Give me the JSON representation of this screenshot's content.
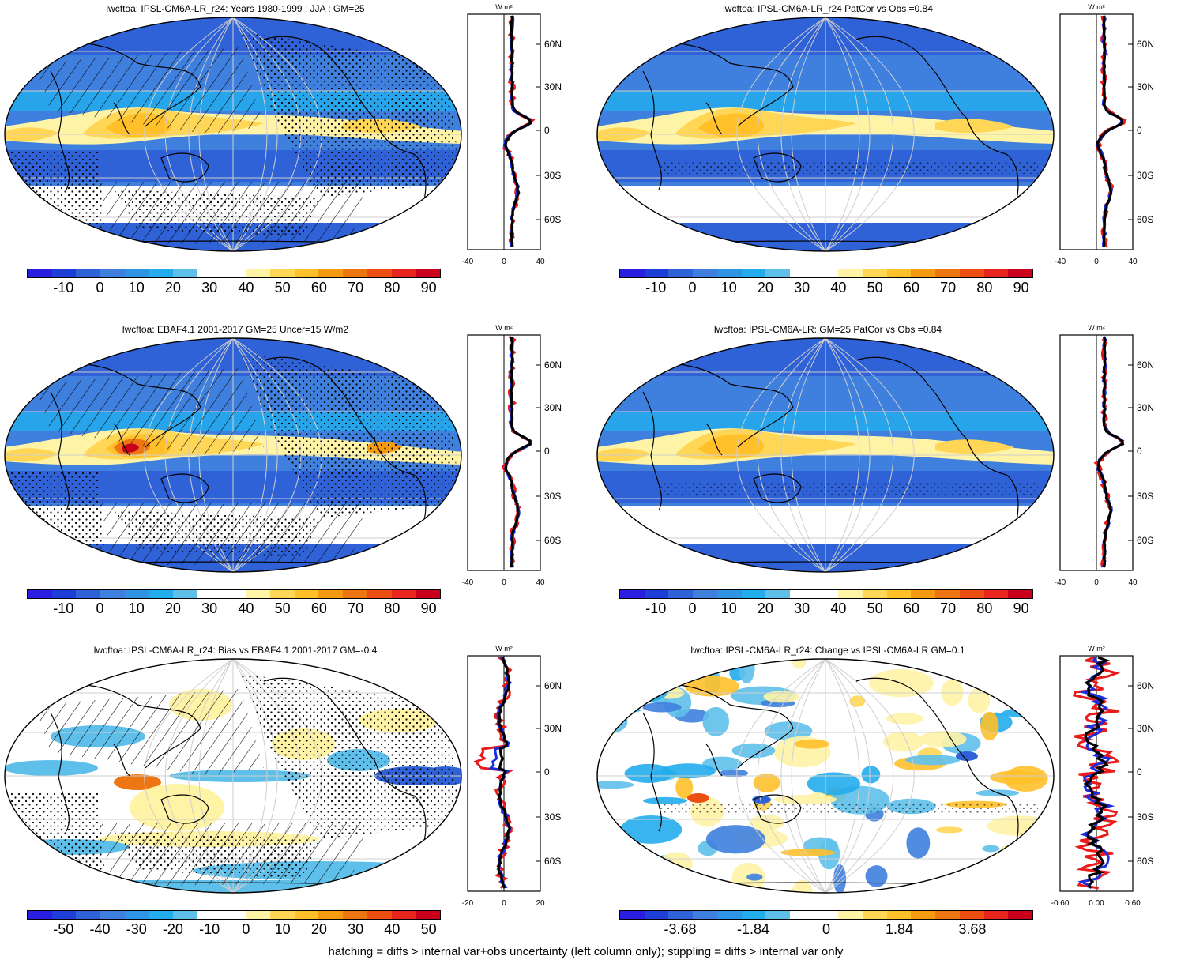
{
  "panels": [
    {
      "title": "lwcftoa: IPSL-CM6A-LR_r24: Years 1980-1999 : JJA : GM=25",
      "cbar_labels": [
        "-10",
        "0",
        "10",
        "20",
        "30",
        "40",
        "50",
        "60",
        "70",
        "80",
        "90"
      ],
      "zonal_ticks_x": [
        "-40",
        "0",
        "40"
      ],
      "lat_labels": [
        "60N",
        "30N",
        "0",
        "30S",
        "60S"
      ],
      "unit": "W m²",
      "kind": "clim",
      "hatch": true,
      "stipple": "dense"
    },
    {
      "title": "lwcftoa: IPSL-CM6A-LR_r24 PatCor vs Obs =0.84",
      "cbar_labels": [
        "-10",
        "0",
        "10",
        "20",
        "30",
        "40",
        "50",
        "60",
        "70",
        "80",
        "90"
      ],
      "zonal_ticks_x": [
        "-40",
        "0",
        "40"
      ],
      "lat_labels": [
        "60N",
        "30N",
        "0",
        "30S",
        "60S"
      ],
      "unit": "W m²",
      "kind": "clim",
      "hatch": false,
      "stipple": "sparse"
    },
    {
      "title": "lwcftoa: EBAF4.1 2001-2017 GM=25 Uncer=15 W/m2",
      "cbar_labels": [
        "-10",
        "0",
        "10",
        "20",
        "30",
        "40",
        "50",
        "60",
        "70",
        "80",
        "90"
      ],
      "zonal_ticks_x": [
        "-40",
        "0",
        "40"
      ],
      "lat_labels": [
        "60N",
        "30N",
        "0",
        "30S",
        "60S"
      ],
      "unit": "W m²",
      "kind": "obs",
      "hatch": true,
      "stipple": "dense"
    },
    {
      "title": "lwcftoa: IPSL-CM6A-LR: GM=25 PatCor vs Obs =0.84",
      "cbar_labels": [
        "-10",
        "0",
        "10",
        "20",
        "30",
        "40",
        "50",
        "60",
        "70",
        "80",
        "90"
      ],
      "zonal_ticks_x": [
        "-40",
        "0",
        "40"
      ],
      "lat_labels": [
        "60N",
        "30N",
        "0",
        "30S",
        "60S"
      ],
      "unit": "W m²",
      "kind": "clim",
      "hatch": false,
      "stipple": "sparse"
    },
    {
      "title": "lwcftoa: IPSL-CM6A-LR_r24: Bias vs EBAF4.1 2001-2017 GM=-0.4",
      "cbar_labels": [
        "-50",
        "-40",
        "-30",
        "-20",
        "-10",
        "0",
        "10",
        "20",
        "30",
        "40",
        "50"
      ],
      "zonal_ticks_x": [
        "-20",
        "0",
        "20"
      ],
      "lat_labels": [
        "60N",
        "30N",
        "0",
        "30S",
        "60S"
      ],
      "unit": "W m²",
      "kind": "bias",
      "hatch": true,
      "stipple": "dense"
    },
    {
      "title": "lwcftoa: IPSL-CM6A-LR_r24: Change vs IPSL-CM6A-LR GM=0.1",
      "cbar_labels": [
        "-3.68",
        "-1.84",
        "0",
        "1.84",
        "3.68"
      ],
      "zonal_ticks_x": [
        "-0.60",
        "0.00",
        "0.60"
      ],
      "lat_labels": [
        "60N",
        "30N",
        "0",
        "30S",
        "60S"
      ],
      "unit": "W m²",
      "kind": "change",
      "hatch": false,
      "stipple": "sparse"
    }
  ],
  "colors": [
    "#2a1ee0",
    "#1f3ed8",
    "#2f62d6",
    "#3f80de",
    "#2e94e3",
    "#22acec",
    "#5ec0ea",
    "#ffffff",
    "#ffffff",
    "#fff3a6",
    "#ffd655",
    "#ffc02a",
    "#f59b12",
    "#ee7612",
    "#ec4e12",
    "#e8261e",
    "#c8001c"
  ],
  "footer": "hatching = diffs > internal var+obs uncertainty (left column only); stippling = diffs > internal var only"
}
